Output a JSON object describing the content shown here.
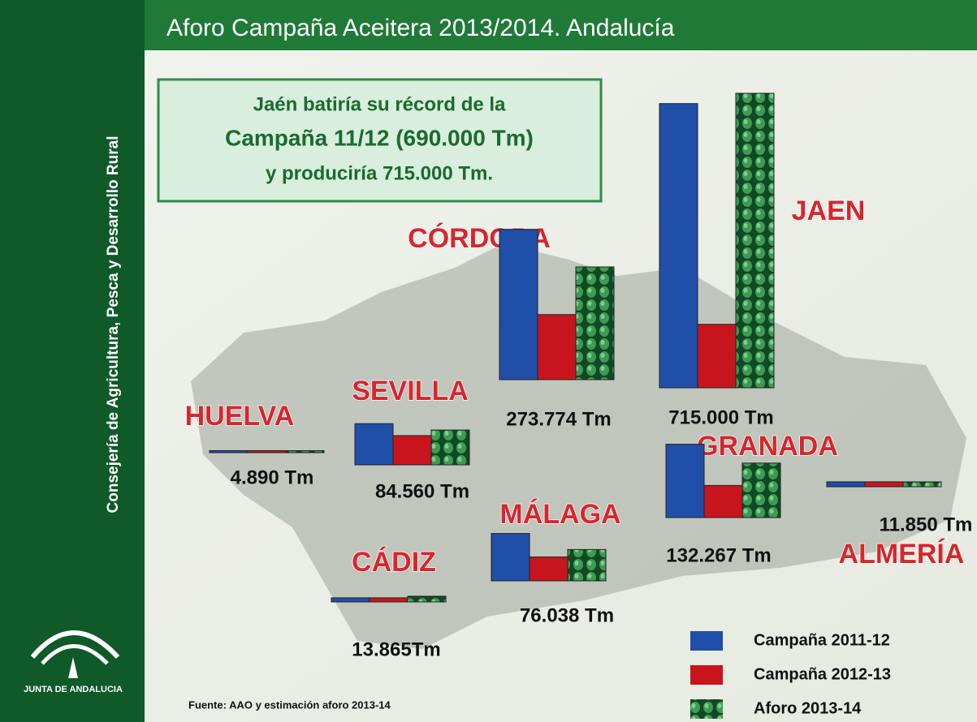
{
  "chart_data": {
    "type": "bar",
    "title": "Aforo Campaña Aceitera 2013/2014. Andalucía",
    "sidebar": "Consejería de Agricultura, Pesca y Desarrollo Rural",
    "logo": "JUNTA DE ANDALUCIA",
    "callout": [
      "Jaén batiría su récord de la",
      "Campaña 11/12 (690.000 Tm)",
      "y produciría 715.000 Tm."
    ],
    "source": "Fuente: AAO y estimación aforo 2013-14",
    "categories": [
      "HUELVA",
      "SEVILLA",
      "CÓRDOBA",
      "JAEN",
      "GRANADA",
      "ALMERÍA",
      "CÁDIZ",
      "MÁLAGA"
    ],
    "series": [
      {
        "name": "Campaña 2011-12",
        "color": "#1f4fa8",
        "values": [
          5000,
          100000,
          365000,
          690000,
          178000,
          12000,
          10000,
          115000
        ]
      },
      {
        "name": "Campaña 2012-13",
        "color": "#c8141c",
        "values": [
          5000,
          71000,
          158000,
          154000,
          78000,
          12000,
          10000,
          58000
        ]
      },
      {
        "name": "Aforo 2013-14",
        "color": "#1d6b34",
        "values": [
          4890,
          84560,
          273774,
          715000,
          132267,
          11850,
          13865,
          76038
        ],
        "value_labels": [
          "4.890 Tm",
          "84.560 Tm",
          "273.774 Tm",
          "715.000 Tm",
          "132.267 Tm",
          "11.850 Tm",
          "13.865Tm",
          "76.038 Tm"
        ]
      }
    ]
  }
}
